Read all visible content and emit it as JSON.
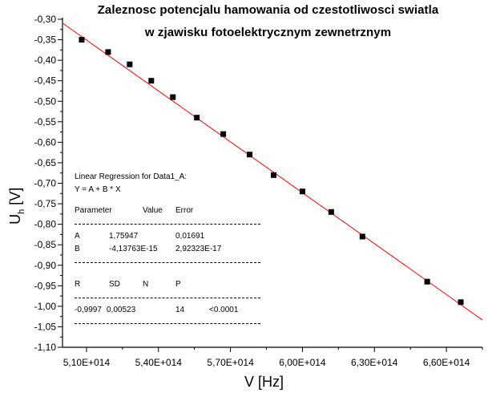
{
  "chart_data": {
    "type": "scatter",
    "title": "Zaleznosc potencjalu hamowania od czestotliwosci swiatla",
    "subtitle": "w zjawisku fotoelektrycznym zewnetrznym",
    "xlabel": "V [Hz]",
    "ylabel_main": "U",
    "ylabel_sub": "h",
    "ylabel_unit": " [V]",
    "xlim": [
      500000000000000.0,
      675000000000000.0
    ],
    "ylim": [
      -1.1,
      -0.3
    ],
    "x_ticks": [
      510000000000000.0,
      540000000000000.0,
      570000000000000.0,
      600000000000000.0,
      630000000000000.0,
      660000000000000.0
    ],
    "x_tick_labels": [
      "5,10E+014",
      "5,40E+014",
      "5,70E+014",
      "6,00E+014",
      "6,30E+014",
      "6,60E+014"
    ],
    "y_ticks": [
      -0.3,
      -0.35,
      -0.4,
      -0.45,
      -0.5,
      -0.55,
      -0.6,
      -0.65,
      -0.7,
      -0.75,
      -0.8,
      -0.85,
      -0.9,
      -0.95,
      -1.0,
      -1.05,
      -1.1
    ],
    "y_tick_labels": [
      "-0,30",
      "-0,35",
      "-0,40",
      "-0,45",
      "-0,50",
      "-0,55",
      "-0,60",
      "-0,65",
      "-0,70",
      "-0,75",
      "-0,80",
      "-0,85",
      "-0,90",
      "-0,95",
      "-1,00",
      "-1,05",
      "-1,10"
    ],
    "points": {
      "x": [
        508000000000000.0,
        519000000000000.0,
        528000000000000.0,
        537000000000000.0,
        546000000000000.0,
        556000000000000.0,
        567000000000000.0,
        578000000000000.0,
        588000000000000.0,
        600000000000000.0,
        612000000000000.0,
        625000000000000.0,
        652000000000000.0,
        666000000000000.0
      ],
      "y": [
        -0.35,
        -0.38,
        -0.41,
        -0.45,
        -0.49,
        -0.54,
        -0.58,
        -0.63,
        -0.68,
        -0.72,
        -0.77,
        -0.83,
        -0.94,
        -0.99
      ]
    },
    "fit": {
      "intercept": 1.75947,
      "slope": -4.13763e-15
    },
    "marker_color": "#000000",
    "fit_line_color": "#ff0000",
    "grid": false
  },
  "fit_box": {
    "title": "Linear Regression for Data1_A:",
    "equation": "Y = A + B * X",
    "header": [
      "Parameter",
      "Value",
      "Error"
    ],
    "rows": [
      [
        "A",
        "1,75947",
        "0,01691"
      ],
      [
        "B",
        "-4,13763E-15",
        "2,92323E-17"
      ]
    ],
    "stats_header": [
      "R",
      "SD",
      "N",
      "P"
    ],
    "stats_values": [
      "-0,9997",
      "0,00523",
      "14",
      "<0.0001"
    ]
  }
}
